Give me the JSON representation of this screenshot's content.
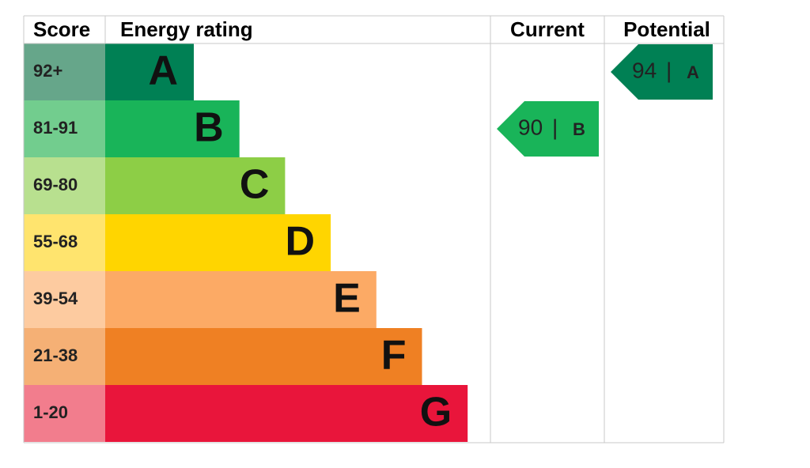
{
  "header": {
    "score": "Score",
    "rating": "Energy rating",
    "current": "Current",
    "potential": "Potential"
  },
  "bands": [
    {
      "range": "92+",
      "letter": "A",
      "color": "#008054",
      "light": "#66a68a"
    },
    {
      "range": "81-91",
      "letter": "B",
      "color": "#19b459",
      "light": "#72cd8e"
    },
    {
      "range": "69-80",
      "letter": "C",
      "color": "#8dce46",
      "light": "#b8e08f"
    },
    {
      "range": "55-68",
      "letter": "D",
      "color": "#ffd500",
      "light": "#ffe46e"
    },
    {
      "range": "39-54",
      "letter": "E",
      "color": "#fcaa65",
      "light": "#fdcba0"
    },
    {
      "range": "21-38",
      "letter": "F",
      "color": "#ef8023",
      "light": "#f5b075"
    },
    {
      "range": "1-20",
      "letter": "G",
      "color": "#e9153b",
      "light": "#f27d8d"
    }
  ],
  "current": {
    "value": 90,
    "letter": "B"
  },
  "potential": {
    "value": 94,
    "letter": "A"
  }
}
